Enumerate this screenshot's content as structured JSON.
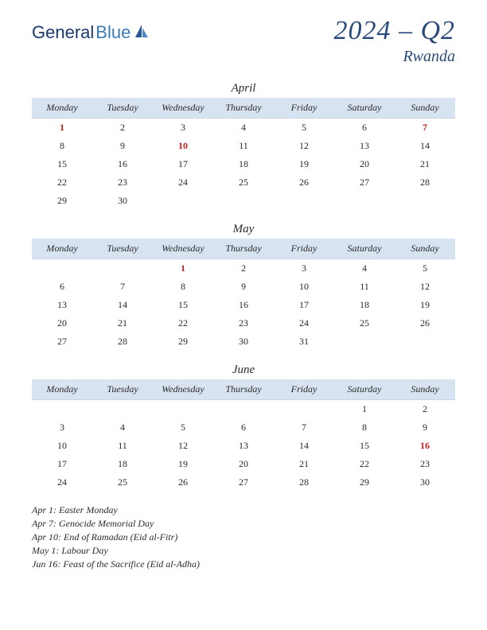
{
  "logo": {
    "general": "General",
    "blue": "Blue"
  },
  "title": {
    "quarter": "2024 – Q2",
    "country": "Rwanda"
  },
  "dayHeaders": [
    "Monday",
    "Tuesday",
    "Wednesday",
    "Thursday",
    "Friday",
    "Saturday",
    "Sunday"
  ],
  "months": [
    {
      "name": "April",
      "weeks": [
        [
          {
            "d": "1",
            "h": true
          },
          {
            "d": "2"
          },
          {
            "d": "3"
          },
          {
            "d": "4"
          },
          {
            "d": "5"
          },
          {
            "d": "6"
          },
          {
            "d": "7",
            "h": true
          }
        ],
        [
          {
            "d": "8"
          },
          {
            "d": "9"
          },
          {
            "d": "10",
            "h": true
          },
          {
            "d": "11"
          },
          {
            "d": "12"
          },
          {
            "d": "13"
          },
          {
            "d": "14"
          }
        ],
        [
          {
            "d": "15"
          },
          {
            "d": "16"
          },
          {
            "d": "17"
          },
          {
            "d": "18"
          },
          {
            "d": "19"
          },
          {
            "d": "20"
          },
          {
            "d": "21"
          }
        ],
        [
          {
            "d": "22"
          },
          {
            "d": "23"
          },
          {
            "d": "24"
          },
          {
            "d": "25"
          },
          {
            "d": "26"
          },
          {
            "d": "27"
          },
          {
            "d": "28"
          }
        ],
        [
          {
            "d": "29"
          },
          {
            "d": "30"
          },
          {
            "d": ""
          },
          {
            "d": ""
          },
          {
            "d": ""
          },
          {
            "d": ""
          },
          {
            "d": ""
          }
        ]
      ]
    },
    {
      "name": "May",
      "weeks": [
        [
          {
            "d": ""
          },
          {
            "d": ""
          },
          {
            "d": "1",
            "h": true
          },
          {
            "d": "2"
          },
          {
            "d": "3"
          },
          {
            "d": "4"
          },
          {
            "d": "5"
          }
        ],
        [
          {
            "d": "6"
          },
          {
            "d": "7"
          },
          {
            "d": "8"
          },
          {
            "d": "9"
          },
          {
            "d": "10"
          },
          {
            "d": "11"
          },
          {
            "d": "12"
          }
        ],
        [
          {
            "d": "13"
          },
          {
            "d": "14"
          },
          {
            "d": "15"
          },
          {
            "d": "16"
          },
          {
            "d": "17"
          },
          {
            "d": "18"
          },
          {
            "d": "19"
          }
        ],
        [
          {
            "d": "20"
          },
          {
            "d": "21"
          },
          {
            "d": "22"
          },
          {
            "d": "23"
          },
          {
            "d": "24"
          },
          {
            "d": "25"
          },
          {
            "d": "26"
          }
        ],
        [
          {
            "d": "27"
          },
          {
            "d": "28"
          },
          {
            "d": "29"
          },
          {
            "d": "30"
          },
          {
            "d": "31"
          },
          {
            "d": ""
          },
          {
            "d": ""
          }
        ]
      ]
    },
    {
      "name": "June",
      "weeks": [
        [
          {
            "d": ""
          },
          {
            "d": ""
          },
          {
            "d": ""
          },
          {
            "d": ""
          },
          {
            "d": ""
          },
          {
            "d": "1"
          },
          {
            "d": "2"
          }
        ],
        [
          {
            "d": "3"
          },
          {
            "d": "4"
          },
          {
            "d": "5"
          },
          {
            "d": "6"
          },
          {
            "d": "7"
          },
          {
            "d": "8"
          },
          {
            "d": "9"
          }
        ],
        [
          {
            "d": "10"
          },
          {
            "d": "11"
          },
          {
            "d": "12"
          },
          {
            "d": "13"
          },
          {
            "d": "14"
          },
          {
            "d": "15"
          },
          {
            "d": "16",
            "h": true
          }
        ],
        [
          {
            "d": "17"
          },
          {
            "d": "18"
          },
          {
            "d": "19"
          },
          {
            "d": "20"
          },
          {
            "d": "21"
          },
          {
            "d": "22"
          },
          {
            "d": "23"
          }
        ],
        [
          {
            "d": "24"
          },
          {
            "d": "25"
          },
          {
            "d": "26"
          },
          {
            "d": "27"
          },
          {
            "d": "28"
          },
          {
            "d": "29"
          },
          {
            "d": "30"
          }
        ]
      ]
    }
  ],
  "holidays": [
    "Apr 1: Easter Monday",
    "Apr 7: Genocide Memorial Day",
    "Apr 10: End of Ramadan (Eid al-Fitr)",
    "May 1: Labour Day",
    "Jun 16: Feast of the Sacrifice (Eid al-Adha)"
  ],
  "colors": {
    "headerBg": "#d8e3f2",
    "titleColor": "#2a4a7a",
    "holidayColor": "#c02020",
    "textColor": "#2a2a2a"
  }
}
